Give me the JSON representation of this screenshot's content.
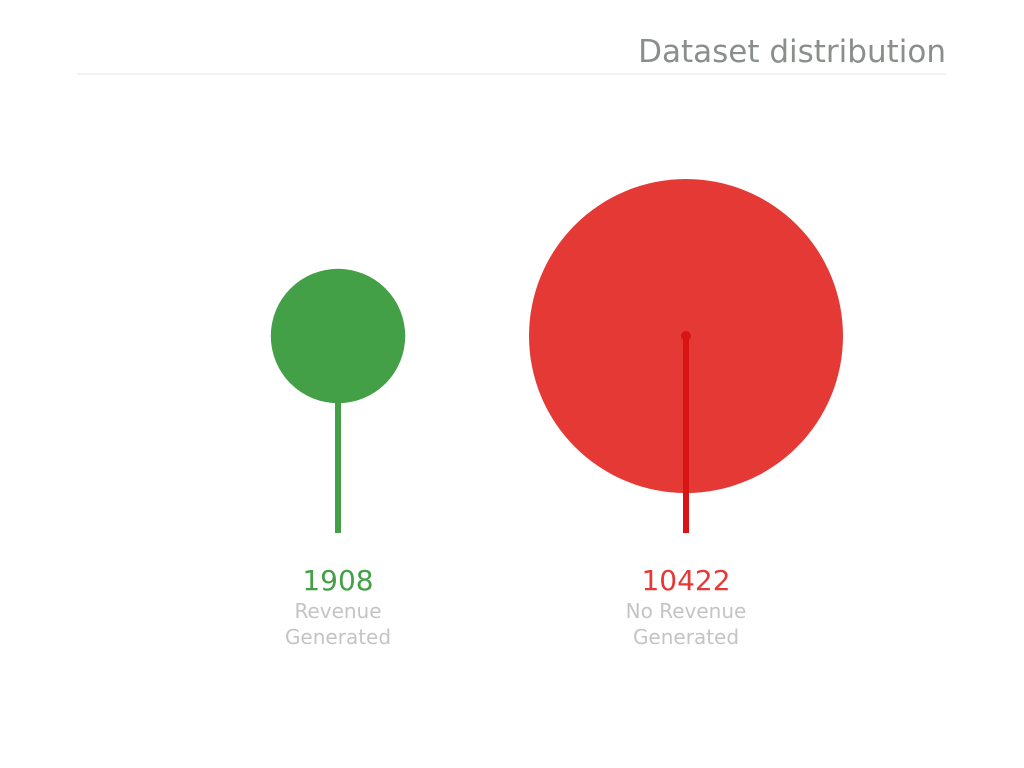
{
  "chart_data": {
    "type": "lollipop-bubble",
    "title": "Dataset distribution",
    "categories": [
      {
        "value": 1908,
        "label_lines": [
          "Revenue",
          "Generated"
        ],
        "color": "#43a047",
        "stem_color": "#43a047"
      },
      {
        "value": 10422,
        "label_lines": [
          "No Revenue",
          "Generated"
        ],
        "color": "#e53935",
        "stem_color": "#d81414"
      }
    ],
    "grid": false,
    "legend": false
  }
}
